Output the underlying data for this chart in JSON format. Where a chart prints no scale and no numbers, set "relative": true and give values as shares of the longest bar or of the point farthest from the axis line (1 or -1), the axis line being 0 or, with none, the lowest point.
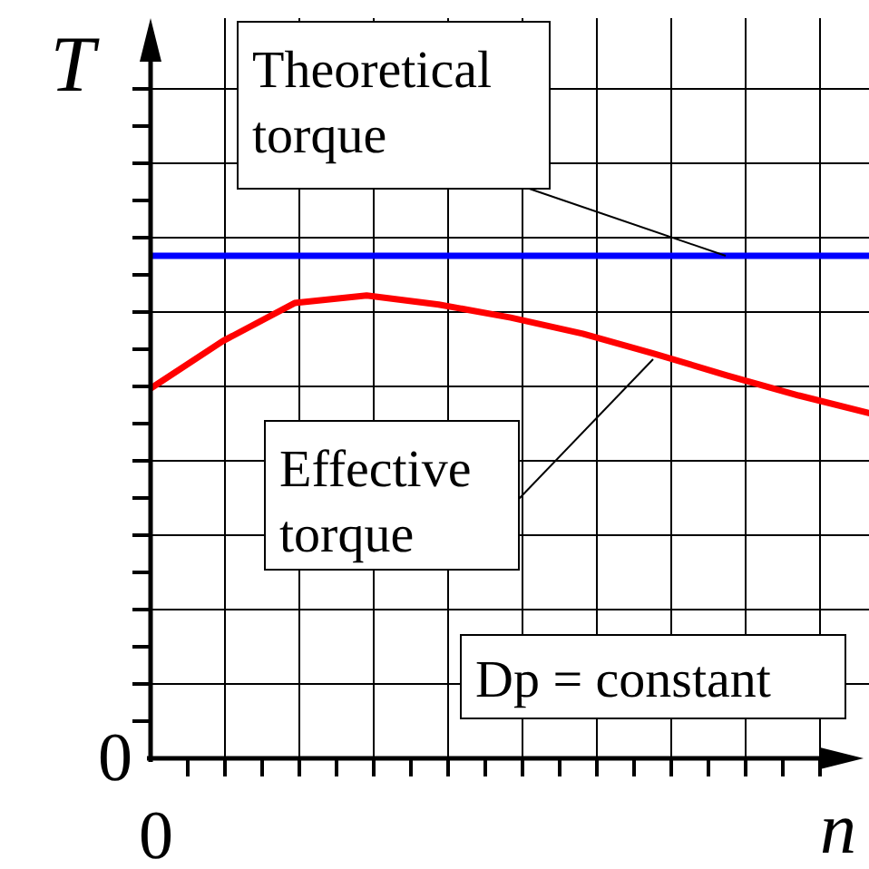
{
  "chart_data": {
    "type": "line",
    "relative": true,
    "xlabel": "n",
    "ylabel": "T",
    "grid": true,
    "line_style": "solid",
    "categories": [
      null,
      null,
      null,
      null,
      null,
      null,
      null,
      null,
      null,
      null,
      null
    ],
    "series": [
      {
        "name": "Theoretical\ntorque",
        "color": "#0000ff",
        "values": [
          1,
          1,
          1,
          1,
          1,
          1,
          1,
          1,
          1,
          1,
          1
        ]
      },
      {
        "name": "Effective\ntorque",
        "color": "#ff0000",
        "values": [
          0.736,
          0.83,
          0.906,
          0.921,
          0.903,
          0.877,
          0.845,
          0.805,
          0.762,
          0.722,
          0.686
        ]
      }
    ],
    "annotations": [
      "Dp = constant",
      "0",
      "0"
    ]
  }
}
